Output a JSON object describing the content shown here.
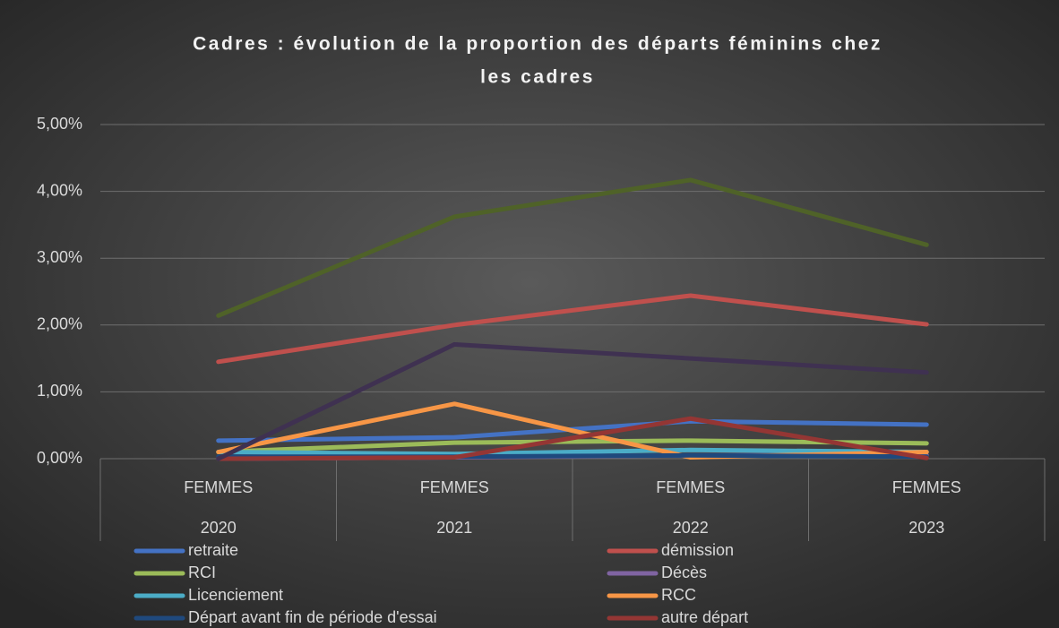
{
  "chart_data": {
    "type": "line",
    "title": [
      "Cadres : évolution de la proportion des départs féminins chez",
      "les cadres"
    ],
    "categories": [
      "2020",
      "2021",
      "2022",
      "2023"
    ],
    "subcategories": [
      "FEMMES",
      "FEMMES",
      "FEMMES",
      "FEMMES"
    ],
    "ylim": [
      0,
      5
    ],
    "yticks": [
      {
        "value": 0,
        "label": "0,00%"
      },
      {
        "value": 1,
        "label": "1,00%"
      },
      {
        "value": 2,
        "label": "2,00%"
      },
      {
        "value": 3,
        "label": "3,00%"
      },
      {
        "value": 4,
        "label": "4,00%"
      },
      {
        "value": 5,
        "label": "5,00%"
      }
    ],
    "grid": true,
    "legend": "bottom",
    "series": [
      {
        "name": "retraite",
        "color": "#4472c4",
        "values": [
          0.27,
          0.32,
          0.56,
          0.51
        ]
      },
      {
        "name": "démission",
        "color": "#c0504d",
        "values": [
          1.45,
          2.0,
          2.44,
          2.01
        ]
      },
      {
        "name": "RCI",
        "color": "#9bbb59",
        "values": [
          0.1,
          0.24,
          0.27,
          0.23
        ]
      },
      {
        "name": "Décès",
        "color": "#8064a2",
        "values": [
          0,
          0.02,
          0.05,
          0.05
        ]
      },
      {
        "name": "Licenciement",
        "color": "#4bacc6",
        "values": [
          0.1,
          0.07,
          0.13,
          0.1
        ]
      },
      {
        "name": "RCC",
        "color": "#f79646",
        "values": [
          0.1,
          0.82,
          0.02,
          0.1
        ]
      },
      {
        "name": "Départ avant fin de période d'essai",
        "color": "#1f497d",
        "values": [
          0.03,
          0.03,
          0.05,
          0.03
        ]
      },
      {
        "name": "autre départ",
        "color": "#943634",
        "values": [
          0,
          0.02,
          0.6,
          0.01
        ]
      },
      {
        "color": "#4f6228",
        "values": [
          2.14,
          3.62,
          4.17,
          3.2
        ]
      },
      {
        "color": "#3f3151",
        "values": [
          0,
          1.71,
          1.5,
          1.29
        ]
      }
    ]
  }
}
